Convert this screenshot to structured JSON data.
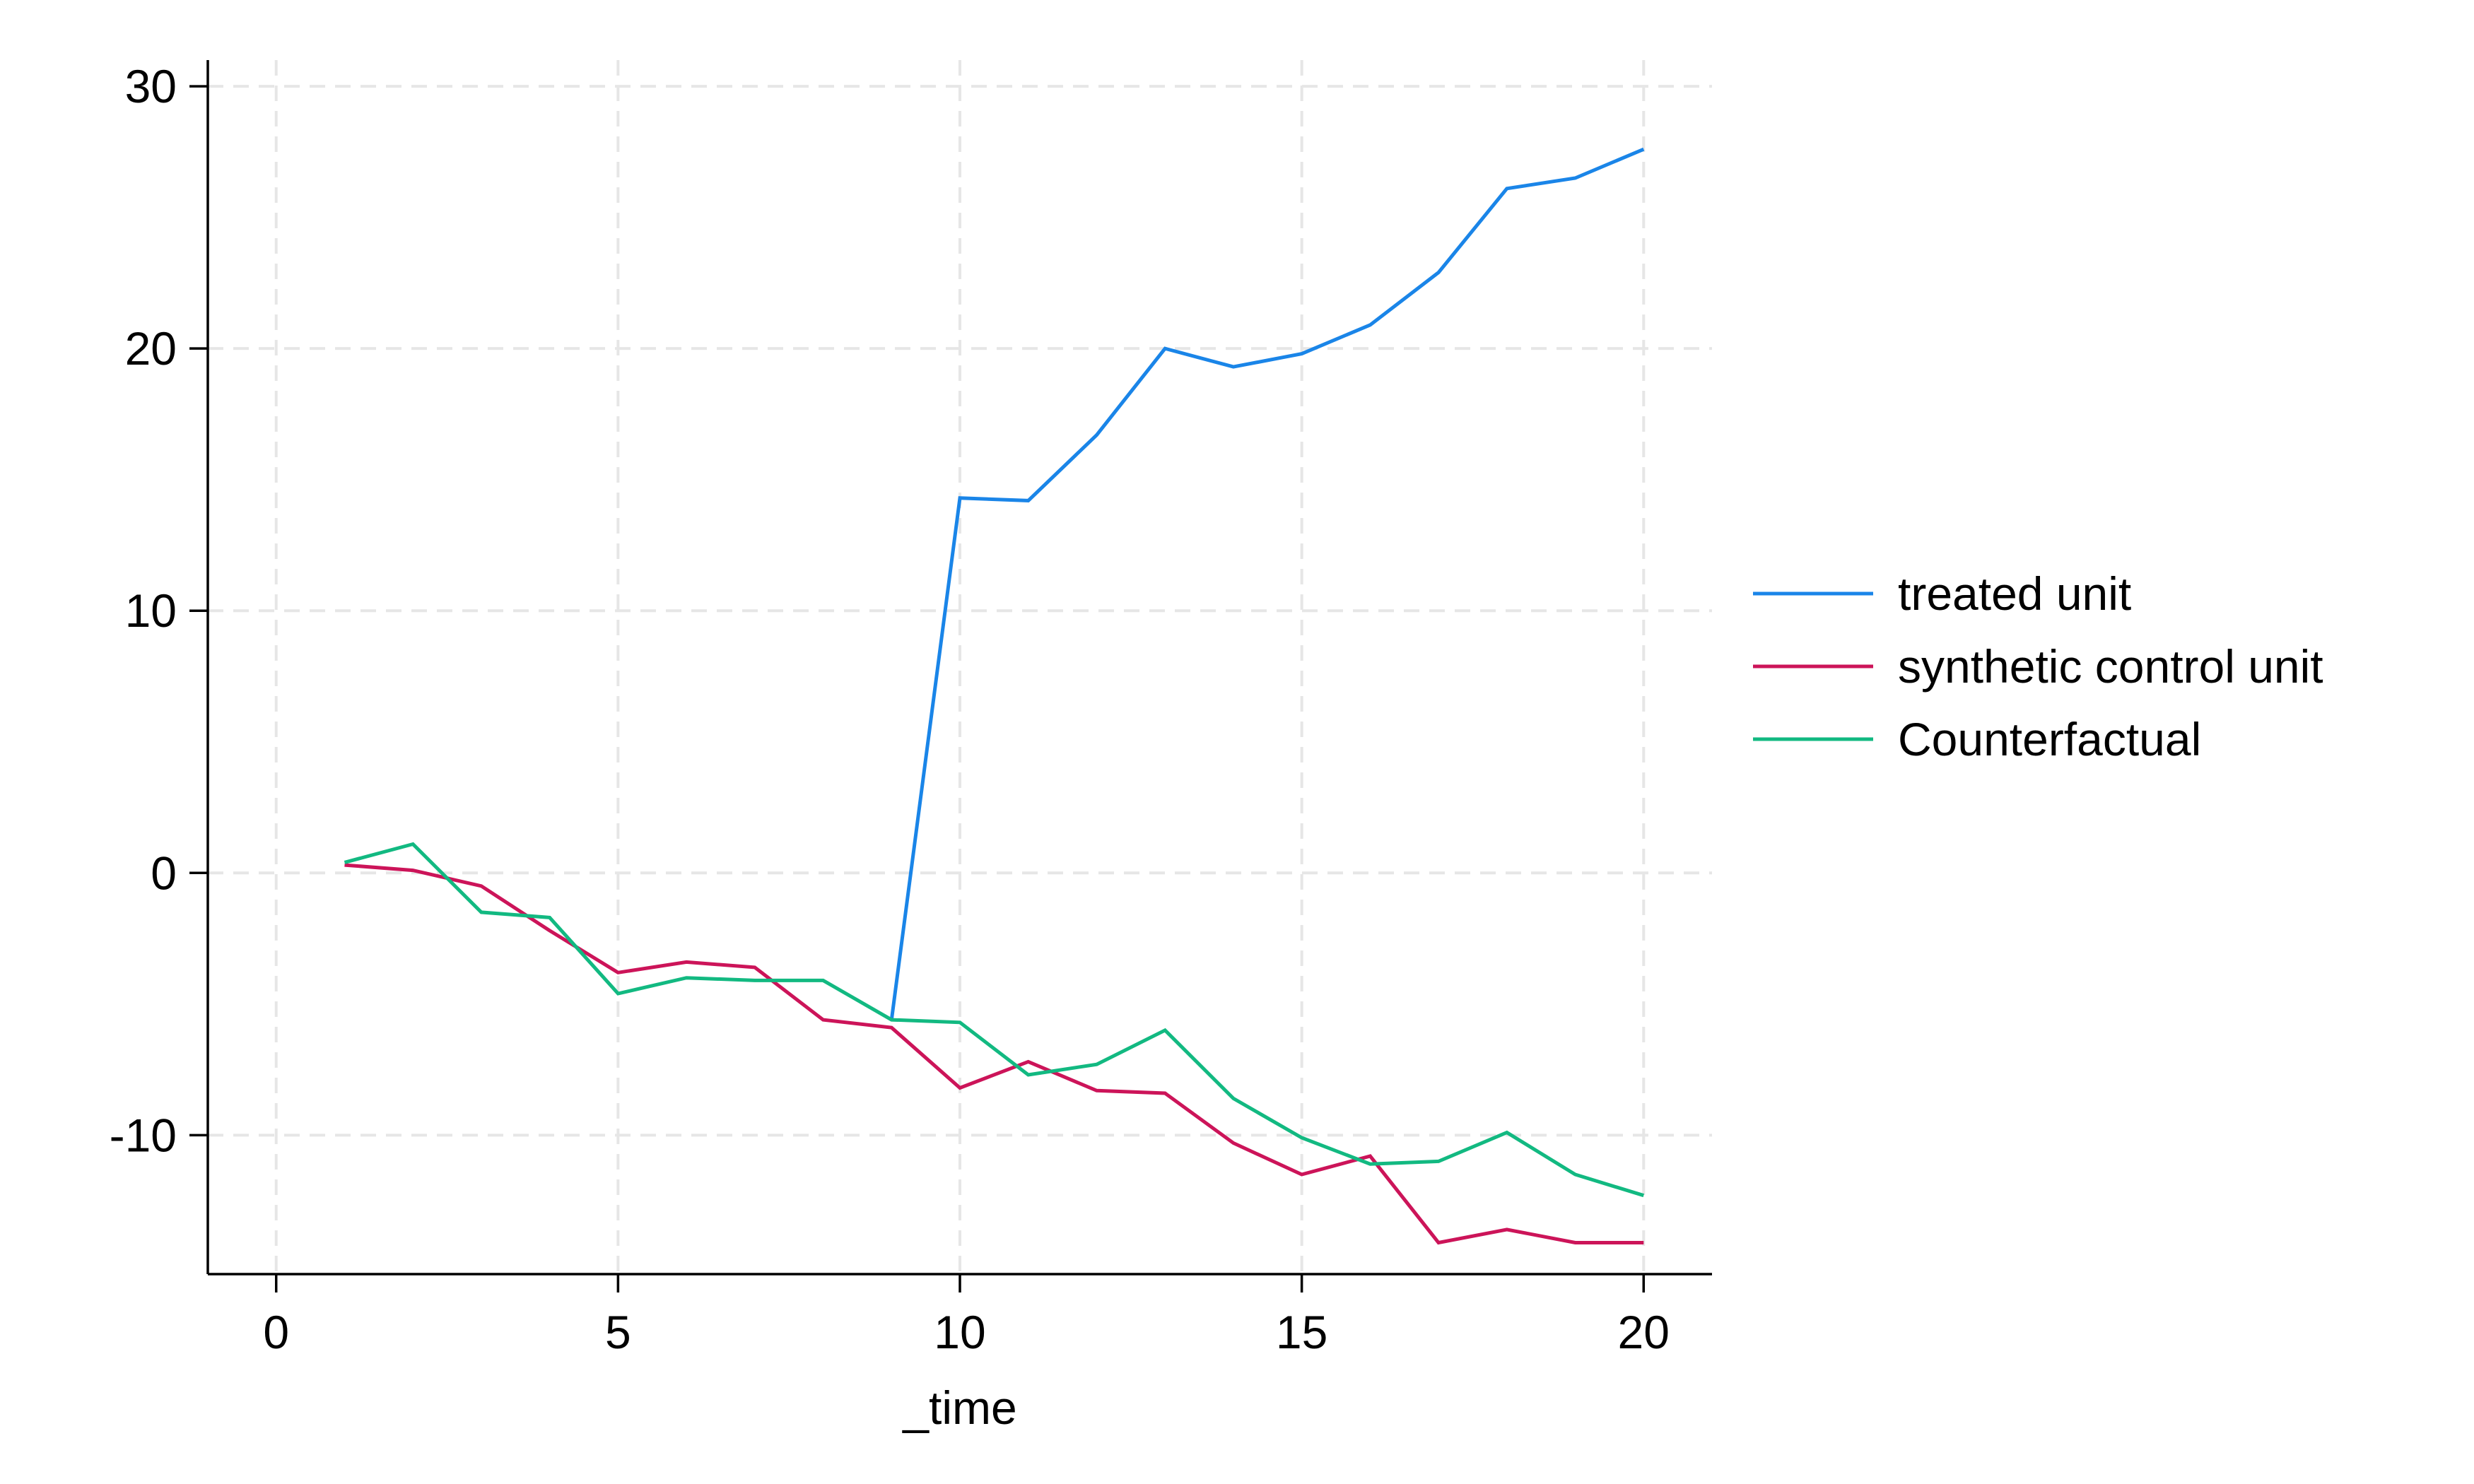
{
  "chart_data": {
    "type": "line",
    "title": "",
    "xlabel": "_time",
    "ylabel": "",
    "xlim": [
      -1,
      21
    ],
    "ylim": [
      -15.3,
      31
    ],
    "xticks": [
      0,
      5,
      10,
      15,
      20
    ],
    "yticks": [
      -10,
      0,
      10,
      20,
      30
    ],
    "grid": true,
    "legend_position": "right",
    "x": [
      1,
      2,
      3,
      4,
      5,
      6,
      7,
      8,
      9,
      10,
      11,
      12,
      13,
      14,
      15,
      16,
      17,
      18,
      19,
      20
    ],
    "series": [
      {
        "name": "treated unit",
        "color": "#1a85e8",
        "x": [
          9,
          10,
          11,
          12,
          13,
          14,
          15,
          16,
          17,
          18,
          19,
          20
        ],
        "values": [
          -5.6,
          14.3,
          14.2,
          16.7,
          20.0,
          19.3,
          19.8,
          20.9,
          22.9,
          26.1,
          26.5,
          27.6
        ]
      },
      {
        "name": "synthetic control unit",
        "color": "#cc1459",
        "x": [
          1,
          2,
          3,
          4,
          5,
          6,
          7,
          8,
          9,
          10,
          11,
          12,
          13,
          14,
          15,
          16,
          17,
          18,
          19,
          20
        ],
        "values": [
          0.3,
          0.1,
          -0.5,
          -2.2,
          -3.8,
          -3.4,
          -3.6,
          -5.6,
          -5.9,
          -8.2,
          -7.2,
          -8.3,
          -8.4,
          -10.3,
          -11.5,
          -10.8,
          -14.1,
          -13.6,
          -14.1,
          -14.1
        ]
      },
      {
        "name": "Counterfactual",
        "color": "#12b981",
        "x": [
          1,
          2,
          3,
          4,
          5,
          6,
          7,
          8,
          9,
          10,
          11,
          12,
          13,
          14,
          15,
          16,
          17,
          18,
          19,
          20
        ],
        "values": [
          0.4,
          1.1,
          -1.5,
          -1.7,
          -4.6,
          -4.0,
          -4.1,
          -4.1,
          -5.6,
          -5.7,
          -7.7,
          -7.3,
          -6.0,
          -8.6,
          -10.1,
          -11.1,
          -11.0,
          -9.9,
          -11.5,
          -12.3
        ]
      }
    ]
  }
}
